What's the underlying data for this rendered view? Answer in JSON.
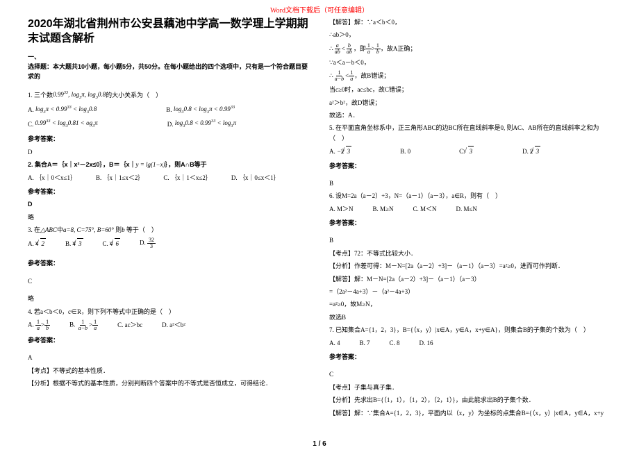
{
  "header_notice": "Word文档下载后（可任意编辑）",
  "title": "2020年湖北省荆州市公安县藕池中学高一数学理上学期期末试题含解析",
  "section1_head": "一、",
  "section1_desc": "选择题：本大题共10小题，每小题5分，共50分。在每小题给出的四个选项中，只有是一个符合题目要求的",
  "q1_stem": "1. 三个数",
  "q1_expr": "0.99<sup>33</sup>, log<sub>3</sub>π, log<sub>3</sub>0.8",
  "q1_tail": "的大小关系为（　）",
  "q1_A": "A.",
  "q1_A_expr": "log<sub>3</sub>π < 0.99<sup>33</sup> < log<sub>3</sub>0.8",
  "q1_B": "B.",
  "q1_B_expr": "log<sub>3</sub>0.8 < log<sub>3</sub>π < 0.99<sup>33</sup>",
  "q1_C": "C.",
  "q1_C_expr": "0.99<sup>33</sup> < log<sub>3</sub>0.81 < og<sub>3</sub>π",
  "q1_D": "D.",
  "q1_D_expr": "log<sub>3</sub>0.8 < 0.99<sup>33</sup> < log<sub>3</sub>π",
  "q1_ans_label": "参考答案：",
  "q1_ans": "D",
  "q2": "2. 集合A＝｛x｜x²－2x≤0｝，B＝｛x｜",
  "q2_expr": "y = lg(1-x)",
  "q2_tail": "｝，则A∩B等于",
  "q2_A": "A. ｛x｜0＜x≤1｝",
  "q2_B": "B. ｛x｜1≤x＜2｝",
  "q2_C": "C. ｛x｜1＜x≤2｝",
  "q2_D": "D. ｛x｜0≤x＜1｝",
  "q2_ans_label": "参考答案：",
  "q2_ans": "D",
  "q2_note": "略",
  "q3": "3. 在△ABC中a=8, C=75°, B=60° 则b 等于（　）",
  "q3_A": "A.",
  "q3_B": "B.",
  "q3_C": "C.",
  "q3_D": "D.",
  "q3_ans_label": "参考答案：",
  "q3_ans": "C",
  "q3_note": "略",
  "q4": "4. 若a＜b＜0，c∈R，则下列不等式中正确的是（　）",
  "q4_A": "A.",
  "q4_B": "B.",
  "q4_C": "C. ac＞bc",
  "q4_D": "D. a²＜b²",
  "q4_ans_label": "参考答案：",
  "q4_ans": "A",
  "q4_point": "【考点】不等式的基本性质．",
  "q4_analysis": "【分析】根据不等式的基本性质，分别判断四个答案中的不等式是否恒成立，可得结论．",
  "r_solve_label": "【解答】解：∵a＜b＜0，",
  "r_solve_l1": "∴ab＞0，",
  "r_solve_l2_pre": "∴",
  "r_solve_l2_mid": "，即",
  "r_solve_l2_post": "，故A正确；",
  "r_solve_l3": "∵a＜a－b＜0，",
  "r_solve_l4_pre": "∴",
  "r_solve_l4_post": "，故B错误；",
  "r_solve_l5": "当c≥0时，ac≤bc，故C错误；",
  "r_solve_l6": "a²＞b²，故D错误；",
  "r_solve_l7": "故选：A．",
  "q5": "5. 在平面直角坐标系中，正三角形ABC的边BC所在直线斜率是0, 则AC、AB所在的直线斜率之和为（　）",
  "q5_A": "A.",
  "q5_B": "B. 0",
  "q5_C": "C.",
  "q5_D": "D.",
  "q5_ans_label": "参考答案：",
  "q5_ans": "B",
  "q6": "6. 设M=2a（a－2）+3，N=（a－1）（a－3），a∈R，则有（　）",
  "q6_A": "A. M＞N",
  "q6_B": "B. M≥N",
  "q6_C": "C. M＜N",
  "q6_D": "D. M≤N",
  "q6_ans_label": "参考答案：",
  "q6_ans": "B",
  "q6_point": "【考点】72：不等式比较大小．",
  "q6_analysis": "【分析】作差可得：M－N=[2a（a－2）+3]－（a－1）（a－3）=a²≥0，进而可作判断．",
  "q6_solve_label": "【解答】解：M－N=[2a（a－2）+3]－（a－1）（a－3）",
  "q6_solve_l1": "=（2a²－4a+3）－（a²－4a+3）",
  "q6_solve_l2": "=a²≥0，故M≥N，",
  "q6_solve_l3": "故选B",
  "q7": "7. 已知集合A={1，2，3}，B={（x，y）|x∈A，y∈A，x+y∈A}，则集合B的子集的个数为（　）",
  "q7_A": "A. 4",
  "q7_B": "B. 7",
  "q7_C": "C. 8",
  "q7_D": "D. 16",
  "q7_ans_label": "参考答案：",
  "q7_ans": "C",
  "q7_point": "【考点】子集与真子集．",
  "q7_analysis": "【分析】先求出B={（1，1），（1，2），（2，1）}，由此能求出B的子集个数．",
  "q7_solve": "【解答】解：∵集合A={1，2，3}，平面内以（x，y）为坐标的点集合B={（x，y）|x∈A，y∈A，x+y",
  "footer": "1 / 6"
}
